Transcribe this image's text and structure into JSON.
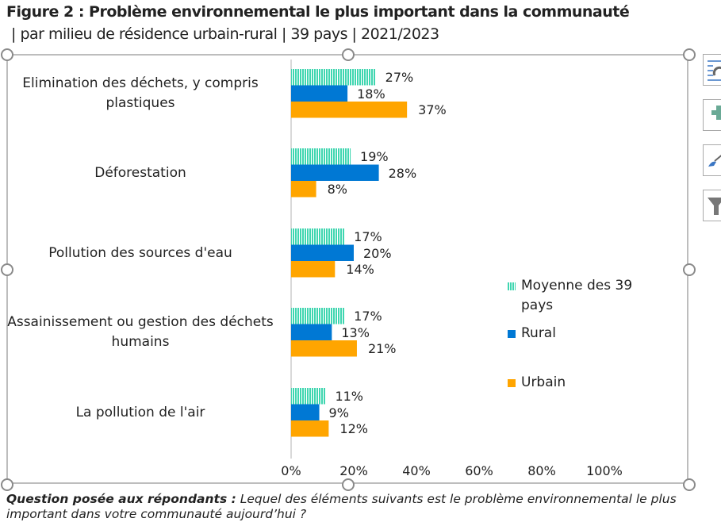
{
  "title": "Figure 2 : Problème environnemental le plus important dans la communauté",
  "subtitle": "| par milieu de résidence urbain-rural | 39 pays | 2021/2023",
  "chart_data": {
    "type": "bar",
    "orientation": "horizontal",
    "categories": [
      "Elimination des déchets, y compris plastiques",
      "Déforestation",
      "Pollution des sources d'eau",
      "Assainissement ou gestion des déchets humains",
      "La pollution de l'air"
    ],
    "series": [
      {
        "name": "Moyenne des 39 pays",
        "color": "#3fd6b0",
        "values": [
          27,
          19,
          17,
          17,
          11
        ]
      },
      {
        "name": "Rural",
        "color": "#0078d4",
        "values": [
          18,
          28,
          20,
          13,
          9
        ]
      },
      {
        "name": "Urbain",
        "color": "#ffa500",
        "values": [
          37,
          8,
          14,
          21,
          12
        ]
      }
    ],
    "value_labels": [
      [
        "27%",
        "18%",
        "37%"
      ],
      [
        "19%",
        "28%",
        "8%"
      ],
      [
        "17%",
        "20%",
        "14%"
      ],
      [
        "17%",
        "13%",
        "21%"
      ],
      [
        "11%",
        "9%",
        "12%"
      ]
    ],
    "xlim": [
      0,
      100
    ],
    "xticks": [
      "0%",
      "20%",
      "40%",
      "60%",
      "80%",
      "100%"
    ],
    "legend_position": "right",
    "grid": false
  },
  "footer": {
    "question_label": "Question posée aux répondants :",
    "question_text": " Lequel des éléments suivants est le problème environnemental le plus important dans votre communauté aujourd’hui ?"
  }
}
